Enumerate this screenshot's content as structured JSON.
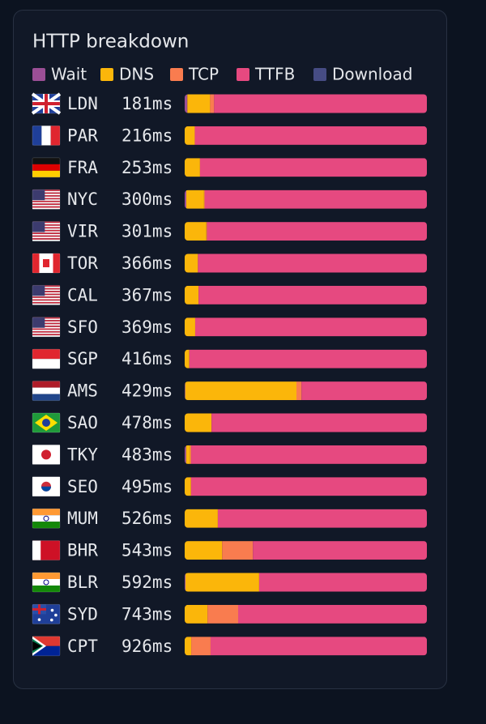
{
  "chart_data": {
    "type": "bar",
    "stacked": true,
    "normalized": true,
    "title": "HTTP breakdown",
    "categories": [
      "LDN",
      "PAR",
      "FRA",
      "NYC",
      "VIR",
      "TOR",
      "CAL",
      "SFO",
      "SGP",
      "AMS",
      "SAO",
      "TKY",
      "SEO",
      "MUM",
      "BHR",
      "BLR",
      "SYD",
      "CPT"
    ],
    "total_labels": [
      "181ms",
      "216ms",
      "253ms",
      "300ms",
      "301ms",
      "366ms",
      "367ms",
      "369ms",
      "416ms",
      "429ms",
      "478ms",
      "483ms",
      "495ms",
      "526ms",
      "543ms",
      "592ms",
      "743ms",
      "926ms"
    ],
    "series": [
      {
        "name": "Wait",
        "color": "#9b4f96",
        "values": [
          2,
          0,
          0,
          2,
          0,
          0,
          0,
          0,
          0,
          1,
          0,
          3,
          0,
          0,
          0,
          2,
          0,
          0
        ]
      },
      {
        "name": "DNS",
        "color": "#fbb60a",
        "values": [
          17,
          9,
          16,
          22,
          27,
          20,
          21,
          16,
          8,
          197,
          53,
          8,
          13,
          72,
          84,
          180,
          70,
          25
        ]
      },
      {
        "name": "TCP",
        "color": "#f97c4f",
        "values": [
          3,
          0,
          0,
          1,
          1,
          0,
          0,
          0,
          0,
          9,
          0,
          2,
          0,
          0,
          69,
          0,
          94,
          74
        ]
      },
      {
        "name": "TTFB",
        "color": "#e64980",
        "values": [
          159,
          207,
          237,
          275,
          273,
          346,
          346,
          353,
          408,
          222,
          425,
          470,
          482,
          454,
          390,
          410,
          579,
          827
        ]
      },
      {
        "name": "Download",
        "color": "#464c84",
        "values": [
          0,
          0,
          0,
          0,
          0,
          0,
          0,
          0,
          0,
          0,
          0,
          0,
          0,
          0,
          0,
          0,
          0,
          0
        ]
      }
    ]
  }
}
